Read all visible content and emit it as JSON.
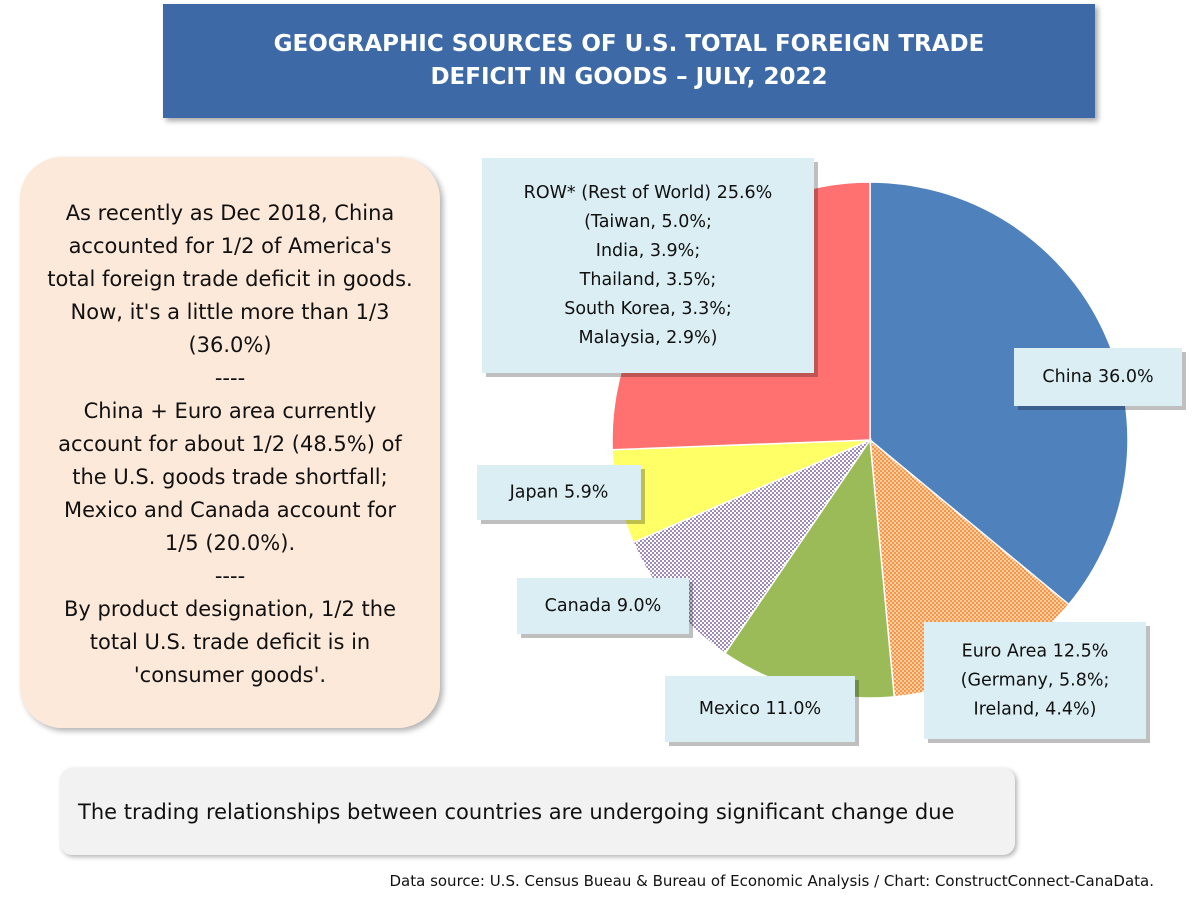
{
  "chart_data": {
    "type": "pie",
    "title": "GEOGRAPHIC SOURCES OF U.S. TOTAL FOREIGN TRADE DEFICIT IN GOODS – JULY, 2022",
    "categories": [
      "China",
      "Euro Area",
      "Mexico",
      "Canada",
      "Japan",
      "ROW* (Rest of World)"
    ],
    "values": [
      36.0,
      12.5,
      11.0,
      9.0,
      5.9,
      25.6
    ],
    "value_labels": [
      "36.0%",
      "12.5%",
      "11.0%",
      "9.0%",
      "5.9%",
      "25.6%"
    ],
    "details": [
      null,
      [
        "(Germany, 5.8%;",
        "Ireland, 4.4%)"
      ],
      null,
      null,
      null,
      [
        "(Taiwan, 5.0%;",
        "India, 3.9%;",
        "Thailand, 3.5%;",
        "South Korea, 3.3%;",
        "Malaysia, 2.9%)"
      ]
    ],
    "colors": [
      "#4f81bd",
      "#f79646",
      "#9bbb59",
      "#8064a2",
      "#ffff66",
      "#ff7070"
    ],
    "patterns": [
      null,
      "dots",
      null,
      "dots",
      null,
      null
    ]
  },
  "note": [
    "As recently as Dec 2018, China accounted for 1/2 of America's total foreign trade deficit in goods. Now, it's a little more than 1/3 (36.0%)",
    "----",
    "China + Euro area currently account for about 1/2 (48.5%) of the U.S. goods trade shortfall; Mexico and Canada account for 1/5 (20.0%).",
    "----",
    "By product designation, 1/2  the total U.S. trade deficit is in 'consumer goods'."
  ],
  "caption": "The trading  relationships between countries are undergoing significant change due",
  "source": "Data source: U.S. Census Bueau & Bureau of Economic Analysis / Chart: ConstructConnect-CanaData."
}
